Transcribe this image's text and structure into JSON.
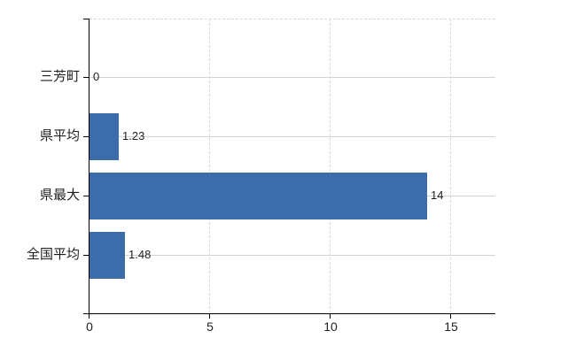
{
  "chart_data": {
    "type": "bar",
    "orientation": "horizontal",
    "title": "",
    "categories": [
      "三芳町",
      "県平均",
      "県最大",
      "全国平均"
    ],
    "values": [
      0,
      1.23,
      14,
      1.48
    ],
    "value_labels": [
      "0",
      "1.23",
      "14",
      "1.48"
    ],
    "x_ticks": [
      0,
      5,
      10,
      15
    ],
    "x_tick_labels": [
      "0",
      "5",
      "10",
      "15"
    ],
    "xlim": [
      0,
      16.85
    ],
    "grid": true,
    "legend": false,
    "colors": {
      "bar": "#3c6ca9",
      "h_gridline": "#cfd6ca",
      "v_gridline": "#d9d9d9",
      "axis": "#000000",
      "text": "#1f1f1f"
    }
  }
}
